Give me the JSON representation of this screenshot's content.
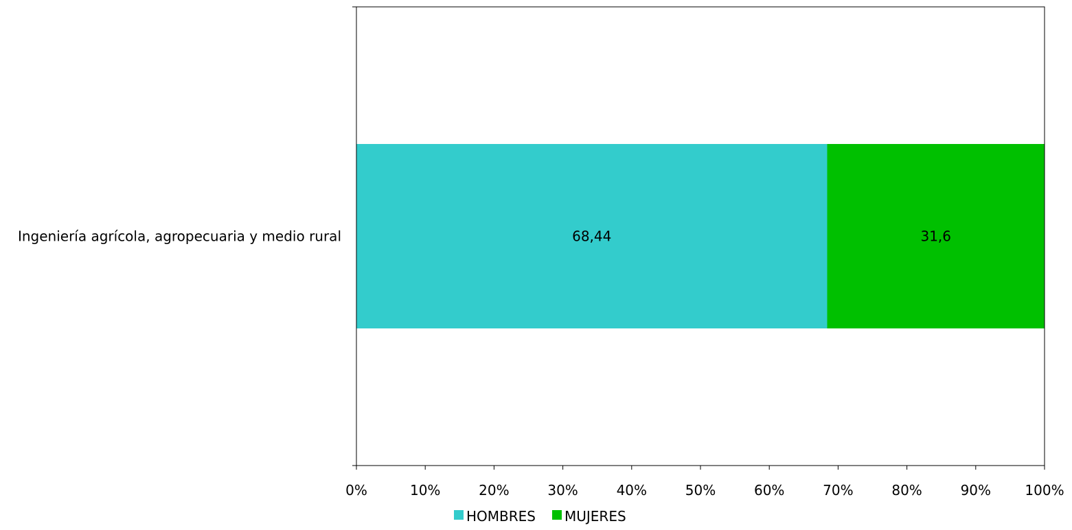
{
  "chart_data": {
    "type": "bar",
    "orientation": "horizontal",
    "stacking": "percent",
    "categories": [
      "Ingeniería agrícola, agropecuaria y medio rural"
    ],
    "series": [
      {
        "name": "HOMBRES",
        "values": [
          68.44
        ],
        "labels": [
          "68,44"
        ],
        "color": "#33CCCC"
      },
      {
        "name": "MUJERES",
        "values": [
          31.6
        ],
        "labels": [
          "31,6"
        ],
        "color": "#00C000"
      }
    ],
    "xlim": [
      0,
      100
    ],
    "xticks": [
      "0%",
      "10%",
      "20%",
      "30%",
      "40%",
      "50%",
      "60%",
      "70%",
      "80%",
      "90%",
      "100%"
    ],
    "grid": false,
    "legend_position": "bottom"
  }
}
